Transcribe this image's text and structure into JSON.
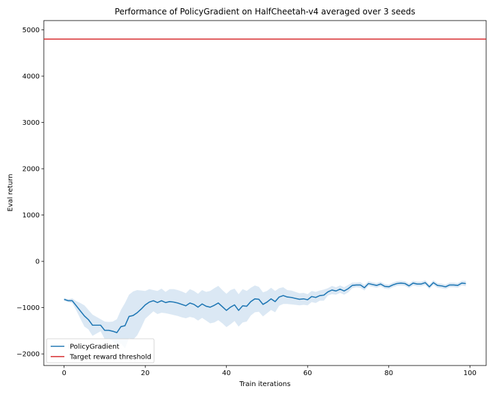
{
  "chart_data": {
    "type": "line",
    "title": "Performance of PolicyGradient on HalfCheetah-v4 averaged over 3 seeds",
    "xlabel": "Train iterations",
    "ylabel": "Eval return",
    "xlim": [
      -5,
      104
    ],
    "ylim": [
      -2250,
      5200
    ],
    "xticks": [
      0,
      20,
      40,
      60,
      80,
      100
    ],
    "yticks": [
      -2000,
      -1000,
      0,
      1000,
      2000,
      3000,
      4000,
      5000
    ],
    "grid": false,
    "legend_position": "lower-left",
    "series": [
      {
        "name": "PolicyGradient",
        "color": "#1f77b4",
        "band_color": "#dbe8f4",
        "x": [
          0,
          1,
          2,
          3,
          4,
          5,
          6,
          7,
          8,
          9,
          10,
          11,
          12,
          13,
          14,
          15,
          16,
          17,
          18,
          19,
          20,
          21,
          22,
          23,
          24,
          25,
          26,
          27,
          28,
          29,
          30,
          31,
          32,
          33,
          34,
          35,
          36,
          37,
          38,
          39,
          40,
          41,
          42,
          43,
          44,
          45,
          46,
          47,
          48,
          49,
          50,
          51,
          52,
          53,
          54,
          55,
          56,
          57,
          58,
          59,
          60,
          61,
          62,
          63,
          64,
          65,
          66,
          67,
          68,
          69,
          70,
          71,
          72,
          73,
          74,
          75,
          76,
          77,
          78,
          79,
          80,
          81,
          82,
          83,
          84,
          85,
          86,
          87,
          88,
          89,
          90,
          91,
          92,
          93,
          94,
          95,
          96,
          97,
          98,
          99
        ],
        "mean": [
          -820,
          -850,
          -850,
          -960,
          -1070,
          -1180,
          -1260,
          -1380,
          -1380,
          -1380,
          -1490,
          -1490,
          -1510,
          -1540,
          -1410,
          -1390,
          -1190,
          -1170,
          -1110,
          -1030,
          -940,
          -880,
          -850,
          -890,
          -850,
          -890,
          -870,
          -880,
          -900,
          -930,
          -960,
          -900,
          -930,
          -990,
          -920,
          -970,
          -990,
          -950,
          -900,
          -980,
          -1060,
          -990,
          -940,
          -1060,
          -960,
          -970,
          -870,
          -810,
          -820,
          -930,
          -880,
          -810,
          -870,
          -770,
          -740,
          -770,
          -780,
          -800,
          -820,
          -810,
          -830,
          -760,
          -780,
          -740,
          -730,
          -660,
          -620,
          -640,
          -600,
          -640,
          -590,
          -520,
          -510,
          -510,
          -570,
          -480,
          -500,
          -520,
          -490,
          -540,
          -550,
          -510,
          -480,
          -470,
          -480,
          -530,
          -470,
          -490,
          -490,
          -460,
          -550,
          -460,
          -520,
          -530,
          -550,
          -510,
          -510,
          -520,
          -470,
          -480
        ],
        "upper": [
          -790,
          -820,
          -800,
          -860,
          -900,
          -950,
          -1050,
          -1150,
          -1200,
          -1250,
          -1300,
          -1310,
          -1300,
          -1250,
          -1050,
          -900,
          -720,
          -650,
          -620,
          -630,
          -640,
          -600,
          -620,
          -640,
          -590,
          -660,
          -600,
          -600,
          -620,
          -650,
          -690,
          -600,
          -640,
          -700,
          -620,
          -660,
          -640,
          -580,
          -530,
          -620,
          -700,
          -620,
          -590,
          -710,
          -600,
          -640,
          -570,
          -520,
          -550,
          -670,
          -640,
          -570,
          -640,
          -580,
          -560,
          -620,
          -630,
          -660,
          -690,
          -680,
          -710,
          -640,
          -660,
          -630,
          -610,
          -580,
          -530,
          -560,
          -520,
          -560,
          -510,
          -460,
          -460,
          -450,
          -510,
          -430,
          -450,
          -470,
          -440,
          -490,
          -500,
          -460,
          -430,
          -420,
          -430,
          -480,
          -420,
          -440,
          -440,
          -410,
          -500,
          -410,
          -470,
          -480,
          -500,
          -460,
          -460,
          -470,
          -420,
          -420
        ],
        "lower": [
          -850,
          -880,
          -900,
          -1060,
          -1240,
          -1410,
          -1470,
          -1610,
          -1560,
          -1510,
          -1680,
          -1670,
          -1720,
          -1830,
          -1770,
          -1880,
          -1660,
          -1690,
          -1600,
          -1430,
          -1240,
          -1160,
          -1080,
          -1140,
          -1110,
          -1120,
          -1140,
          -1160,
          -1180,
          -1210,
          -1230,
          -1200,
          -1220,
          -1280,
          -1220,
          -1280,
          -1340,
          -1320,
          -1270,
          -1340,
          -1420,
          -1360,
          -1290,
          -1410,
          -1320,
          -1300,
          -1170,
          -1100,
          -1090,
          -1190,
          -1120,
          -1050,
          -1100,
          -960,
          -920,
          -920,
          -930,
          -940,
          -950,
          -940,
          -950,
          -880,
          -900,
          -850,
          -850,
          -740,
          -710,
          -720,
          -680,
          -720,
          -670,
          -580,
          -560,
          -570,
          -630,
          -530,
          -550,
          -570,
          -540,
          -590,
          -600,
          -560,
          -530,
          -520,
          -530,
          -580,
          -520,
          -540,
          -540,
          -510,
          -600,
          -510,
          -570,
          -580,
          -600,
          -560,
          -560,
          -570,
          -520,
          -540
        ]
      },
      {
        "name": "Target reward threshold",
        "color": "#d62728",
        "y_constant": 4800
      }
    ]
  }
}
